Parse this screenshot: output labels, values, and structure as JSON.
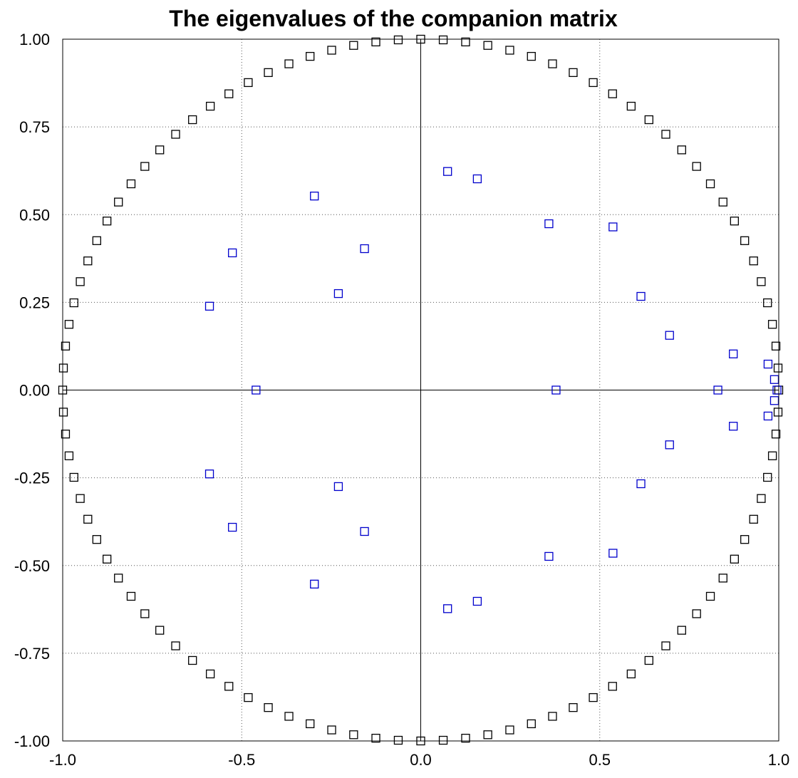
{
  "chart_data": {
    "type": "scatter",
    "title": "The eigenvalues of the companion matrix",
    "xlabel": "",
    "ylabel": "",
    "xlim": [
      -1.0,
      1.0
    ],
    "ylim": [
      -1.0,
      1.0
    ],
    "x_ticks": [
      "-1.0",
      "-0.5",
      "0.0",
      "0.5",
      "1.0"
    ],
    "y_ticks": [
      "1.00",
      "0.75",
      "0.50",
      "0.25",
      "0.00",
      "-0.25",
      "-0.50",
      "-0.75",
      "-1.00"
    ],
    "grid": true,
    "marker": "open-square",
    "series": [
      {
        "color": "#000000",
        "description_points": "unit circle: 100 roots of unity, cos(2*pi*k/100), sin(2*pi*k/100)",
        "count": 100
      },
      {
        "color": "#0000cc",
        "points": [
          [
            0.075,
            0.623
          ],
          [
            0.158,
            0.602
          ],
          [
            0.358,
            0.474
          ],
          [
            0.537,
            0.465
          ],
          [
            0.615,
            0.267
          ],
          [
            0.695,
            0.156
          ],
          [
            0.873,
            0.103
          ],
          [
            0.97,
            0.074
          ],
          [
            0.988,
            0.03
          ],
          [
            0.995,
            0.0
          ],
          [
            0.83,
            0.0
          ],
          [
            0.378,
            0.0
          ],
          [
            -0.46,
            0.0
          ],
          [
            -0.23,
            0.275
          ],
          [
            -0.157,
            0.403
          ],
          [
            -0.297,
            0.553
          ],
          [
            -0.526,
            0.391
          ],
          [
            -0.59,
            0.239
          ],
          [
            0.075,
            -0.623
          ],
          [
            0.158,
            -0.602
          ],
          [
            0.358,
            -0.474
          ],
          [
            0.537,
            -0.465
          ],
          [
            0.615,
            -0.267
          ],
          [
            0.695,
            -0.156
          ],
          [
            0.873,
            -0.103
          ],
          [
            0.97,
            -0.074
          ],
          [
            0.988,
            -0.03
          ],
          [
            -0.23,
            -0.275
          ],
          [
            -0.157,
            -0.403
          ],
          [
            -0.297,
            -0.553
          ],
          [
            -0.526,
            -0.391
          ],
          [
            -0.59,
            -0.239
          ]
        ]
      }
    ]
  }
}
